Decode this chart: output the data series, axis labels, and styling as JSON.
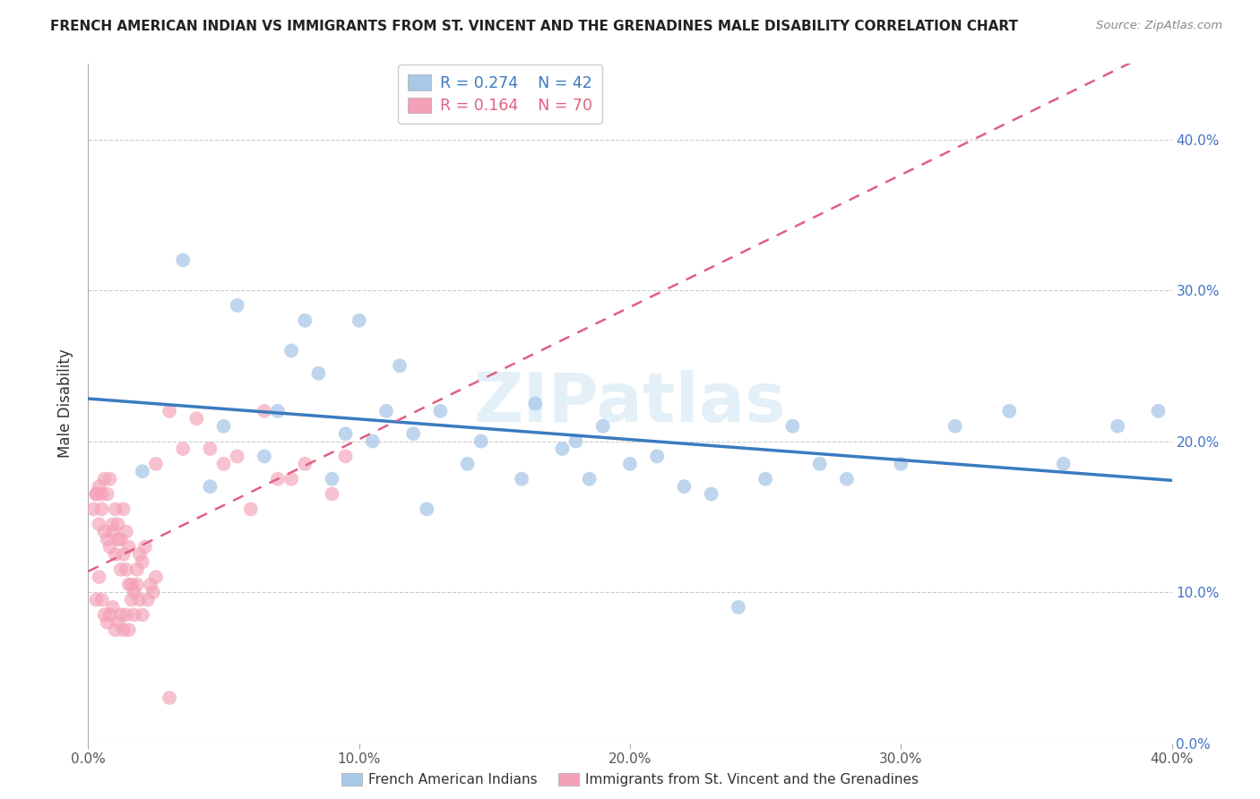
{
  "title": "FRENCH AMERICAN INDIAN VS IMMIGRANTS FROM ST. VINCENT AND THE GRENADINES MALE DISABILITY CORRELATION CHART",
  "source": "Source: ZipAtlas.com",
  "ylabel": "Male Disability",
  "xlim": [
    0.0,
    0.4
  ],
  "ylim": [
    0.0,
    0.45
  ],
  "xticks": [
    0.0,
    0.1,
    0.2,
    0.3,
    0.4
  ],
  "xtick_labels": [
    "0.0%",
    "10.0%",
    "20.0%",
    "30.0%",
    "40.0%"
  ],
  "yticks": [
    0.0,
    0.1,
    0.2,
    0.3,
    0.4
  ],
  "ytick_labels_right": [
    "0.0%",
    "10.0%",
    "20.0%",
    "30.0%",
    "40.0%"
  ],
  "legend_r1": "R = 0.274",
  "legend_n1": "N = 42",
  "legend_r2": "R = 0.164",
  "legend_n2": "N = 70",
  "color_blue": "#a8c8e8",
  "color_pink": "#f4a0b8",
  "line_blue": "#3a7bbf",
  "line_pink_dashed": "#e06080",
  "watermark": "ZIPatlas",
  "blue_scatter_x": [
    0.02,
    0.035,
    0.045,
    0.05,
    0.055,
    0.065,
    0.07,
    0.075,
    0.08,
    0.085,
    0.09,
    0.095,
    0.1,
    0.105,
    0.11,
    0.115,
    0.12,
    0.125,
    0.13,
    0.14,
    0.145,
    0.16,
    0.165,
    0.175,
    0.18,
    0.185,
    0.19,
    0.2,
    0.21,
    0.22,
    0.23,
    0.24,
    0.25,
    0.26,
    0.27,
    0.28,
    0.3,
    0.32,
    0.34,
    0.36,
    0.38,
    0.395
  ],
  "blue_scatter_y": [
    0.18,
    0.32,
    0.17,
    0.21,
    0.29,
    0.19,
    0.22,
    0.26,
    0.28,
    0.245,
    0.175,
    0.205,
    0.28,
    0.2,
    0.22,
    0.25,
    0.205,
    0.155,
    0.22,
    0.185,
    0.2,
    0.175,
    0.225,
    0.195,
    0.2,
    0.175,
    0.21,
    0.185,
    0.19,
    0.17,
    0.165,
    0.09,
    0.175,
    0.21,
    0.185,
    0.175,
    0.185,
    0.21,
    0.22,
    0.185,
    0.21,
    0.22
  ],
  "pink_scatter_x": [
    0.002,
    0.003,
    0.004,
    0.005,
    0.006,
    0.007,
    0.008,
    0.009,
    0.01,
    0.011,
    0.012,
    0.013,
    0.014,
    0.015,
    0.016,
    0.017,
    0.018,
    0.019,
    0.02,
    0.021,
    0.022,
    0.023,
    0.024,
    0.025,
    0.003,
    0.004,
    0.005,
    0.006,
    0.007,
    0.008,
    0.009,
    0.01,
    0.011,
    0.012,
    0.013,
    0.014,
    0.015,
    0.016,
    0.017,
    0.018,
    0.019,
    0.02,
    0.003,
    0.004,
    0.005,
    0.006,
    0.007,
    0.008,
    0.009,
    0.01,
    0.011,
    0.012,
    0.013,
    0.014,
    0.015,
    0.025,
    0.03,
    0.035,
    0.04,
    0.045,
    0.05,
    0.055,
    0.06,
    0.065,
    0.07,
    0.075,
    0.08,
    0.09,
    0.095,
    0.03
  ],
  "pink_scatter_y": [
    0.155,
    0.165,
    0.17,
    0.165,
    0.175,
    0.165,
    0.175,
    0.145,
    0.155,
    0.145,
    0.135,
    0.155,
    0.14,
    0.13,
    0.105,
    0.1,
    0.115,
    0.125,
    0.12,
    0.13,
    0.095,
    0.105,
    0.1,
    0.11,
    0.165,
    0.145,
    0.155,
    0.14,
    0.135,
    0.13,
    0.14,
    0.125,
    0.135,
    0.115,
    0.125,
    0.115,
    0.105,
    0.095,
    0.085,
    0.105,
    0.095,
    0.085,
    0.095,
    0.11,
    0.095,
    0.085,
    0.08,
    0.085,
    0.09,
    0.075,
    0.08,
    0.085,
    0.075,
    0.085,
    0.075,
    0.185,
    0.22,
    0.195,
    0.215,
    0.195,
    0.185,
    0.19,
    0.155,
    0.22,
    0.175,
    0.175,
    0.185,
    0.165,
    0.19,
    0.03
  ]
}
